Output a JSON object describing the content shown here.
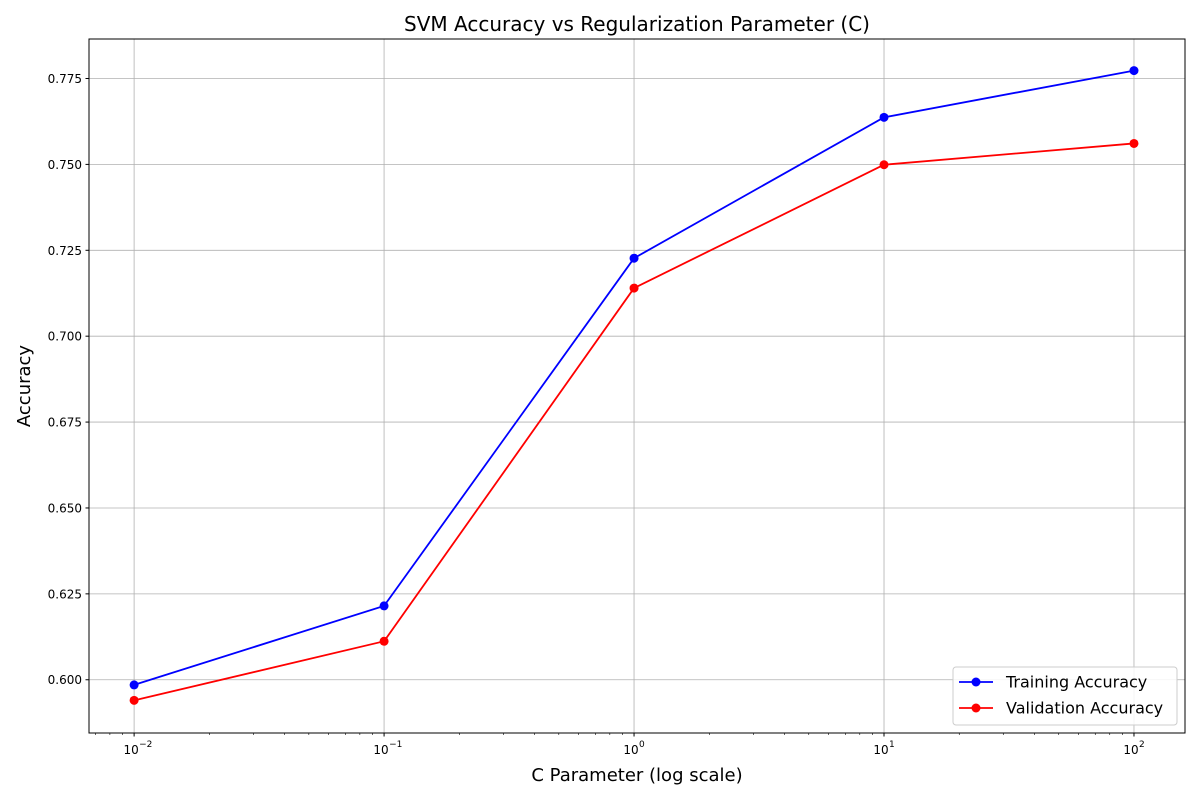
{
  "chart_data": {
    "type": "line",
    "title": "SVM Accuracy vs Regularization Parameter (C)",
    "xlabel": "C Parameter (log scale)",
    "ylabel": "Accuracy",
    "xscale": "log",
    "xlim": [
      0.0066,
      160
    ],
    "ylim": [
      0.5845,
      0.7865
    ],
    "x": [
      0.01,
      0.1,
      1,
      10,
      100
    ],
    "x_ticks": [
      {
        "value": 0.01,
        "base": "10",
        "exp": "−2"
      },
      {
        "value": 0.1,
        "base": "10",
        "exp": "−1"
      },
      {
        "value": 1,
        "base": "10",
        "exp": "0"
      },
      {
        "value": 10,
        "base": "10",
        "exp": "1"
      },
      {
        "value": 100,
        "base": "10",
        "exp": "2"
      }
    ],
    "y_ticks": [
      {
        "value": 0.6,
        "label": "0.600"
      },
      {
        "value": 0.625,
        "label": "0.625"
      },
      {
        "value": 0.65,
        "label": "0.650"
      },
      {
        "value": 0.675,
        "label": "0.675"
      },
      {
        "value": 0.7,
        "label": "0.700"
      },
      {
        "value": 0.725,
        "label": "0.725"
      },
      {
        "value": 0.75,
        "label": "0.750"
      },
      {
        "value": 0.775,
        "label": "0.775"
      }
    ],
    "series": [
      {
        "name": "Training Accuracy",
        "color": "#0000ff",
        "marker": "circle",
        "values": [
          0.5985,
          0.6215,
          0.7227,
          0.7637,
          0.7773
        ]
      },
      {
        "name": "Validation Accuracy",
        "color": "#ff0000",
        "marker": "circle",
        "values": [
          0.594,
          0.6112,
          0.714,
          0.7499,
          0.7561
        ]
      }
    ],
    "grid": true,
    "legend_position": "lower-right"
  }
}
